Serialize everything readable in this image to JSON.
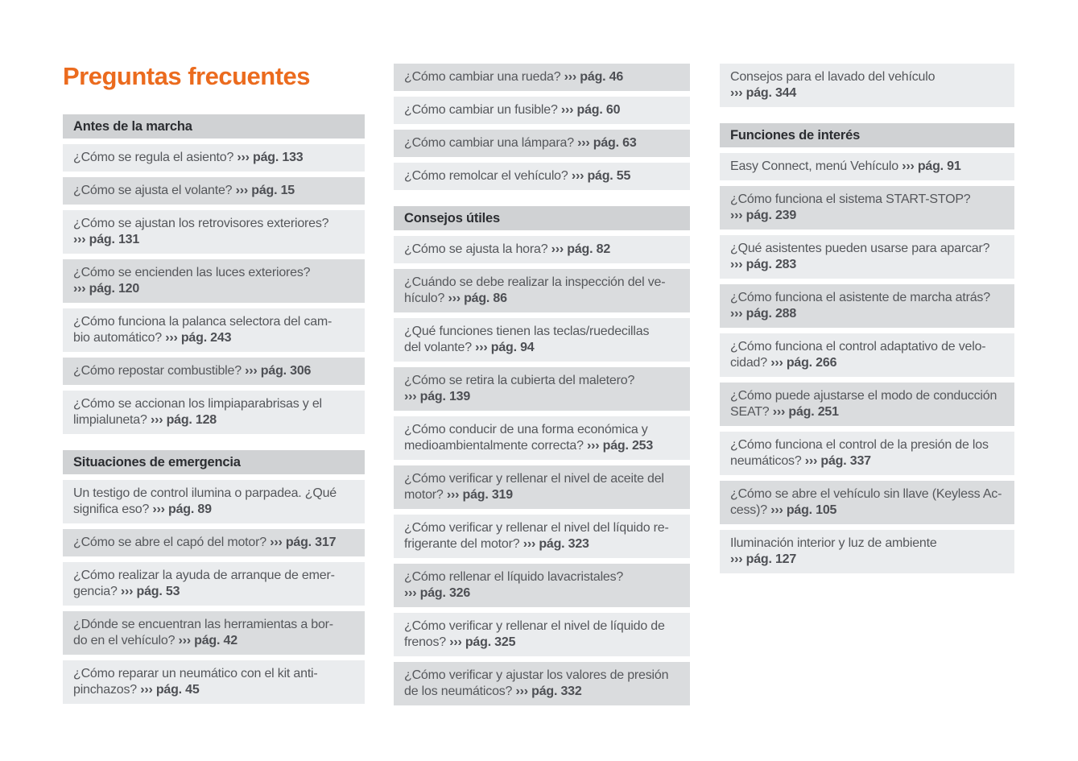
{
  "title": "Preguntas frecuentes",
  "ref_prefix": "››› pág.",
  "colors": {
    "accent_orange": "#eb6b1e",
    "section_header_bg": "#d0d2d4",
    "row_dark_bg": "#dadcde",
    "row_light_bg": "#eaecee",
    "body_text": "#55575b"
  },
  "columns": [
    {
      "blocks": [
        {
          "type": "section",
          "label": "Antes de la marcha"
        },
        {
          "type": "item",
          "shade": "light",
          "question": "¿Cómo se regula el asiento?",
          "page": "133",
          "ref_new_line": false
        },
        {
          "type": "item",
          "shade": "dark",
          "question": "¿Cómo se ajusta el volante?",
          "page": "15",
          "ref_new_line": false
        },
        {
          "type": "item",
          "shade": "light",
          "question": "¿Cómo se ajustan los retrovisores exteriores?",
          "page": "131",
          "ref_new_line": true
        },
        {
          "type": "item",
          "shade": "dark",
          "question": "¿Cómo se encienden las luces exteriores?",
          "page": "120",
          "ref_new_line": true
        },
        {
          "type": "item",
          "shade": "light",
          "question": "¿Cómo funciona la palanca selectora del cam-\nbio automático?",
          "page": "243",
          "ref_new_line": false
        },
        {
          "type": "item",
          "shade": "dark",
          "question": "¿Cómo repostar combustible?",
          "page": "306",
          "ref_new_line": false
        },
        {
          "type": "item",
          "shade": "light",
          "question": "¿Cómo se accionan los limpiaparabrisas y el\nlimpialuneta?",
          "page": "128",
          "ref_new_line": false
        },
        {
          "type": "section",
          "label": "Situaciones de emergencia"
        },
        {
          "type": "item",
          "shade": "light",
          "question": "Un testigo de control ilumina o parpadea. ¿Qué\nsignifica eso?",
          "page": "89",
          "ref_new_line": false
        },
        {
          "type": "item",
          "shade": "dark",
          "question": "¿Cómo se abre el capó del motor?",
          "page": "317",
          "ref_new_line": false
        },
        {
          "type": "item",
          "shade": "light",
          "question": "¿Cómo realizar la ayuda de arranque de emer-\ngencia?",
          "page": "53",
          "ref_new_line": false
        },
        {
          "type": "item",
          "shade": "dark",
          "question": "¿Dónde se encuentran las herramientas a bor-\ndo en el vehículo?",
          "page": "42",
          "ref_new_line": false
        },
        {
          "type": "item",
          "shade": "light",
          "question": "¿Cómo reparar un neumático con el kit anti-\npinchazos?",
          "page": "45",
          "ref_new_line": false
        }
      ]
    },
    {
      "blocks": [
        {
          "type": "item",
          "shade": "dark",
          "question": "¿Cómo cambiar una rueda?",
          "page": "46",
          "ref_new_line": false
        },
        {
          "type": "item",
          "shade": "light",
          "question": "¿Cómo cambiar un fusible?",
          "page": "60",
          "ref_new_line": false
        },
        {
          "type": "item",
          "shade": "dark",
          "question": "¿Cómo cambiar una lámpara?",
          "page": "63",
          "ref_new_line": false
        },
        {
          "type": "item",
          "shade": "light",
          "question": "¿Cómo remolcar el vehículo?",
          "page": "55",
          "ref_new_line": false
        },
        {
          "type": "section",
          "label": "Consejos útiles"
        },
        {
          "type": "item",
          "shade": "light",
          "question": "¿Cómo se ajusta la hora?",
          "page": "82",
          "ref_new_line": false
        },
        {
          "type": "item",
          "shade": "dark",
          "question": "¿Cuándo se debe realizar la inspección del ve-\nhículo?",
          "page": "86",
          "ref_new_line": false
        },
        {
          "type": "item",
          "shade": "light",
          "question": "¿Qué funciones tienen las teclas/ruedecillas\ndel volante?",
          "page": "94",
          "ref_new_line": false
        },
        {
          "type": "item",
          "shade": "dark",
          "question": "¿Cómo se retira la cubierta del maletero?",
          "page": "139",
          "ref_new_line": true
        },
        {
          "type": "item",
          "shade": "light",
          "question": "¿Cómo conducir de una forma económica y\nmedioambientalmente correcta?",
          "page": "253",
          "ref_new_line": false
        },
        {
          "type": "item",
          "shade": "dark",
          "question": "¿Cómo verificar y rellenar el nivel de aceite del\nmotor?",
          "page": "319",
          "ref_new_line": false
        },
        {
          "type": "item",
          "shade": "light",
          "question": "¿Cómo verificar y rellenar el nivel del líquido re-\nfrigerante del motor?",
          "page": "323",
          "ref_new_line": false
        },
        {
          "type": "item",
          "shade": "dark",
          "question": "¿Cómo rellenar el líquido lavacristales?",
          "page": "326",
          "ref_new_line": true
        },
        {
          "type": "item",
          "shade": "light",
          "question": "¿Cómo verificar y rellenar el nivel de líquido de\nfrenos?",
          "page": "325",
          "ref_new_line": false
        },
        {
          "type": "item",
          "shade": "dark",
          "question": "¿Cómo verificar y ajustar los valores de presión\nde los neumáticos?",
          "page": "332",
          "ref_new_line": false
        }
      ]
    },
    {
      "blocks": [
        {
          "type": "item",
          "shade": "light",
          "question": "Consejos para el lavado del vehículo",
          "page": "344",
          "ref_new_line": true
        },
        {
          "type": "section",
          "label": "Funciones de interés"
        },
        {
          "type": "item",
          "shade": "light",
          "question": "Easy Connect, menú Vehículo",
          "page": "91",
          "ref_new_line": false
        },
        {
          "type": "item",
          "shade": "dark",
          "question": "¿Cómo funciona el sistema START-STOP?",
          "page": "239",
          "ref_new_line": true
        },
        {
          "type": "item",
          "shade": "light",
          "question": "¿Qué asistentes pueden usarse para aparcar?",
          "page": "283",
          "ref_new_line": true
        },
        {
          "type": "item",
          "shade": "dark",
          "question": "¿Cómo funciona el asistente de marcha atrás?",
          "page": "288",
          "ref_new_line": true
        },
        {
          "type": "item",
          "shade": "light",
          "question": "¿Cómo funciona el control adaptativo de velo-\ncidad?",
          "page": "266",
          "ref_new_line": false
        },
        {
          "type": "item",
          "shade": "dark",
          "question": "¿Cómo puede ajustarse el modo de conducción\nSEAT?",
          "page": "251",
          "ref_new_line": false
        },
        {
          "type": "item",
          "shade": "light",
          "question": "¿Cómo funciona el control de la presión de los\nneumáticos?",
          "page": "337",
          "ref_new_line": false
        },
        {
          "type": "item",
          "shade": "dark",
          "question": "¿Cómo se abre el vehículo sin llave (Keyless Ac-\ncess)?",
          "page": "105",
          "ref_new_line": false
        },
        {
          "type": "item",
          "shade": "light",
          "question": "Iluminación interior y luz de ambiente",
          "page": "127",
          "ref_new_line": true
        }
      ]
    }
  ]
}
